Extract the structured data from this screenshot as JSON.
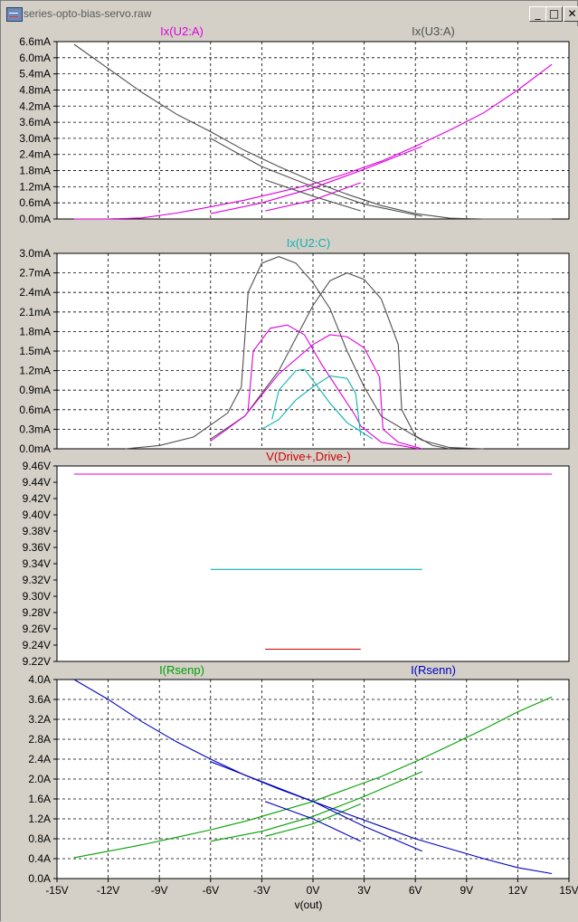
{
  "window": {
    "title": "series-opto-bias-servo.raw",
    "buttons": {
      "minimize": "_",
      "maximize": "□",
      "close": "✕"
    }
  },
  "colors": {
    "background": "#ffffff",
    "grid": "#000000",
    "axis_text": "#000000",
    "gray_trace": "#505050",
    "magenta": "#dd00dd",
    "cyan": "#10b0b0",
    "red": "#d00000",
    "green": "#00a000",
    "blue": "#0000c0"
  },
  "chart_data": [
    {
      "type": "line",
      "title_left": "Ix(U2:A)",
      "title_right": "Ix(U3:A)",
      "y_unit": "mA",
      "ylim": [
        0,
        6.6
      ],
      "yticks": [
        "6.6mA",
        "6.0mA",
        "5.4mA",
        "4.8mA",
        "4.2mA",
        "3.6mA",
        "3.0mA",
        "2.4mA",
        "1.8mA",
        "1.2mA",
        "0.6mA",
        "0.0mA"
      ],
      "xlim": [
        -15,
        15
      ],
      "grid": true,
      "series": [
        {
          "name": "Ix(U2:A)",
          "color_key": "magenta",
          "x": [
            -14,
            -12,
            -10,
            -8,
            -6,
            -4,
            -2,
            0,
            2,
            4,
            6,
            8,
            10,
            12,
            14
          ],
          "y": [
            0,
            0,
            0.04,
            0.22,
            0.45,
            0.7,
            1.0,
            1.3,
            1.7,
            2.15,
            2.7,
            3.3,
            3.95,
            4.8,
            5.75
          ]
        },
        {
          "name": "",
          "color_key": "magenta",
          "x": [
            -6,
            -3,
            0,
            3,
            6.4
          ],
          "y": [
            0.2,
            0.6,
            1.15,
            1.85,
            2.7
          ]
        },
        {
          "name": "",
          "color_key": "magenta",
          "x": [
            -2.8,
            0,
            2.8
          ],
          "y": [
            0.3,
            0.7,
            1.35
          ]
        },
        {
          "name": "Ix(U3:A)",
          "color_key": "gray_trace",
          "x": [
            -14,
            -12,
            -10,
            -8,
            -6,
            -4,
            -2,
            0,
            2,
            4,
            6,
            8,
            10,
            12,
            14
          ],
          "y": [
            6.5,
            5.6,
            4.7,
            3.9,
            3.25,
            2.55,
            1.95,
            1.4,
            0.92,
            0.5,
            0.2,
            0.03,
            0,
            0,
            0
          ]
        },
        {
          "name": "",
          "color_key": "gray_trace",
          "x": [
            -6,
            -3,
            0,
            3,
            6.4
          ],
          "y": [
            3.0,
            1.95,
            1.2,
            0.55,
            0.1
          ]
        },
        {
          "name": "",
          "color_key": "gray_trace",
          "x": [
            -2.8,
            0,
            2.8
          ],
          "y": [
            1.45,
            0.85,
            0.3
          ]
        }
      ]
    },
    {
      "type": "line",
      "title_center": "Ix(U2:C)",
      "y_unit": "mA",
      "ylim": [
        0,
        3.0
      ],
      "yticks": [
        "3.0mA",
        "2.7mA",
        "2.4mA",
        "2.1mA",
        "1.8mA",
        "1.5mA",
        "1.2mA",
        "0.9mA",
        "0.6mA",
        "0.3mA",
        "0.0mA"
      ],
      "xlim": [
        -15,
        15
      ],
      "grid": true,
      "series": [
        {
          "name": "",
          "color_key": "gray_trace",
          "x": [
            -11,
            -9,
            -7,
            -5,
            -4.2,
            -3.8,
            -3,
            -2,
            -1,
            0,
            1,
            2,
            3,
            4,
            6.4,
            8,
            10
          ],
          "y": [
            0,
            0.05,
            0.18,
            0.55,
            0.95,
            2.4,
            2.85,
            2.95,
            2.85,
            2.55,
            2.15,
            1.5,
            0.95,
            0.5,
            0.13,
            0.02,
            0
          ]
        },
        {
          "name": "",
          "color_key": "gray_trace",
          "x": [
            -6,
            -4,
            -2,
            0,
            1,
            2,
            3,
            4,
            5,
            5.2,
            6,
            7,
            8
          ],
          "y": [
            0.15,
            0.5,
            1.2,
            2.2,
            2.58,
            2.7,
            2.6,
            2.3,
            1.6,
            0.6,
            0.2,
            0.05,
            0
          ]
        },
        {
          "name": "",
          "color_key": "magenta",
          "x": [
            -6,
            -4,
            -2,
            0,
            1,
            2,
            3,
            3.9,
            4.1,
            5,
            6.4
          ],
          "y": [
            0.12,
            0.5,
            1.15,
            1.6,
            1.75,
            1.72,
            1.55,
            1.1,
            0.3,
            0.1,
            0
          ]
        },
        {
          "name": "",
          "color_key": "magenta",
          "x": [
            -3.8,
            -3.5,
            -2.5,
            -1.5,
            -0.5,
            0.5,
            1.5,
            2.5,
            2.8,
            4,
            6.2
          ],
          "y": [
            0.6,
            1.5,
            1.85,
            1.9,
            1.75,
            1.3,
            0.9,
            0.5,
            0.35,
            0.1,
            0
          ]
        },
        {
          "name": "Ix(U2:C)",
          "color_key": "cyan",
          "x": [
            -3,
            -2,
            -1,
            0,
            1,
            2,
            2.5,
            2.8
          ],
          "y": [
            0.3,
            0.45,
            0.75,
            0.95,
            1.12,
            1.08,
            0.85,
            0.2
          ]
        },
        {
          "name": "",
          "color_key": "cyan",
          "x": [
            -2.4,
            -2,
            -1,
            -0.5,
            0,
            1,
            2,
            3.5
          ],
          "y": [
            0.45,
            0.9,
            1.2,
            1.22,
            1.05,
            0.7,
            0.4,
            0.15
          ]
        }
      ]
    },
    {
      "type": "line",
      "title_center": "V(Drive+,Drive-)",
      "y_unit": "V",
      "ylim": [
        9.22,
        9.46
      ],
      "yticks": [
        "9.46V",
        "9.44V",
        "9.42V",
        "9.40V",
        "9.38V",
        "9.36V",
        "9.34V",
        "9.32V",
        "9.30V",
        "9.28V",
        "9.26V",
        "9.24V",
        "9.22V"
      ],
      "xlim": [
        -15,
        15
      ],
      "grid": false,
      "series": [
        {
          "name": "",
          "color_key": "magenta",
          "x": [
            -14,
            14
          ],
          "y": [
            9.45,
            9.45
          ]
        },
        {
          "name": "",
          "color_key": "cyan",
          "x": [
            -6,
            6.4
          ],
          "y": [
            9.333,
            9.333
          ]
        },
        {
          "name": "V(Drive+,Drive-)",
          "color_key": "red",
          "x": [
            -2.8,
            2.8
          ],
          "y": [
            9.235,
            9.235
          ]
        }
      ]
    },
    {
      "type": "line",
      "title_left": "I(Rsenp)",
      "title_right": "I(Rsenn)",
      "y_unit": "A",
      "ylim": [
        0,
        4.0
      ],
      "yticks": [
        "4.0A",
        "3.6A",
        "3.2A",
        "2.8A",
        "2.4A",
        "2.0A",
        "1.6A",
        "1.2A",
        "0.8A",
        "0.4A",
        "0.0A"
      ],
      "xticks": [
        "-15V",
        "-12V",
        "-9V",
        "-6V",
        "-3V",
        "0V",
        "3V",
        "6V",
        "9V",
        "12V",
        "15V"
      ],
      "xlabel": "v(out)",
      "xlim": [
        -15,
        15
      ],
      "grid": true,
      "series": [
        {
          "name": "I(Rsenp)",
          "color_key": "green",
          "x": [
            -14,
            -12,
            -10,
            -8,
            -6,
            -4,
            -2,
            0,
            2,
            4,
            6,
            8,
            10,
            12,
            14
          ],
          "y": [
            0.42,
            0.55,
            0.68,
            0.83,
            0.98,
            1.15,
            1.35,
            1.55,
            1.8,
            2.05,
            2.35,
            2.67,
            3.0,
            3.35,
            3.65
          ]
        },
        {
          "name": "",
          "color_key": "green",
          "x": [
            -6,
            -3,
            0,
            3,
            6.4
          ],
          "y": [
            0.75,
            0.95,
            1.25,
            1.65,
            2.15
          ]
        },
        {
          "name": "",
          "color_key": "green",
          "x": [
            -2.8,
            0,
            2.8
          ],
          "y": [
            0.85,
            1.1,
            1.5
          ]
        },
        {
          "name": "I(Rsenn)",
          "color_key": "blue",
          "x": [
            -14,
            -12,
            -10,
            -8,
            -6,
            -4,
            -2,
            0,
            2,
            4,
            6,
            8,
            10,
            12,
            14
          ],
          "y": [
            4.0,
            3.6,
            3.15,
            2.75,
            2.4,
            2.08,
            1.8,
            1.55,
            1.3,
            1.05,
            0.8,
            0.6,
            0.4,
            0.22,
            0.1
          ]
        },
        {
          "name": "",
          "color_key": "blue",
          "x": [
            -6,
            -3,
            0,
            3,
            6.4
          ],
          "y": [
            2.35,
            1.95,
            1.55,
            1.05,
            0.55
          ]
        },
        {
          "name": "",
          "color_key": "blue",
          "x": [
            -2.8,
            0,
            2.8
          ],
          "y": [
            1.55,
            1.2,
            0.75
          ]
        }
      ]
    }
  ]
}
